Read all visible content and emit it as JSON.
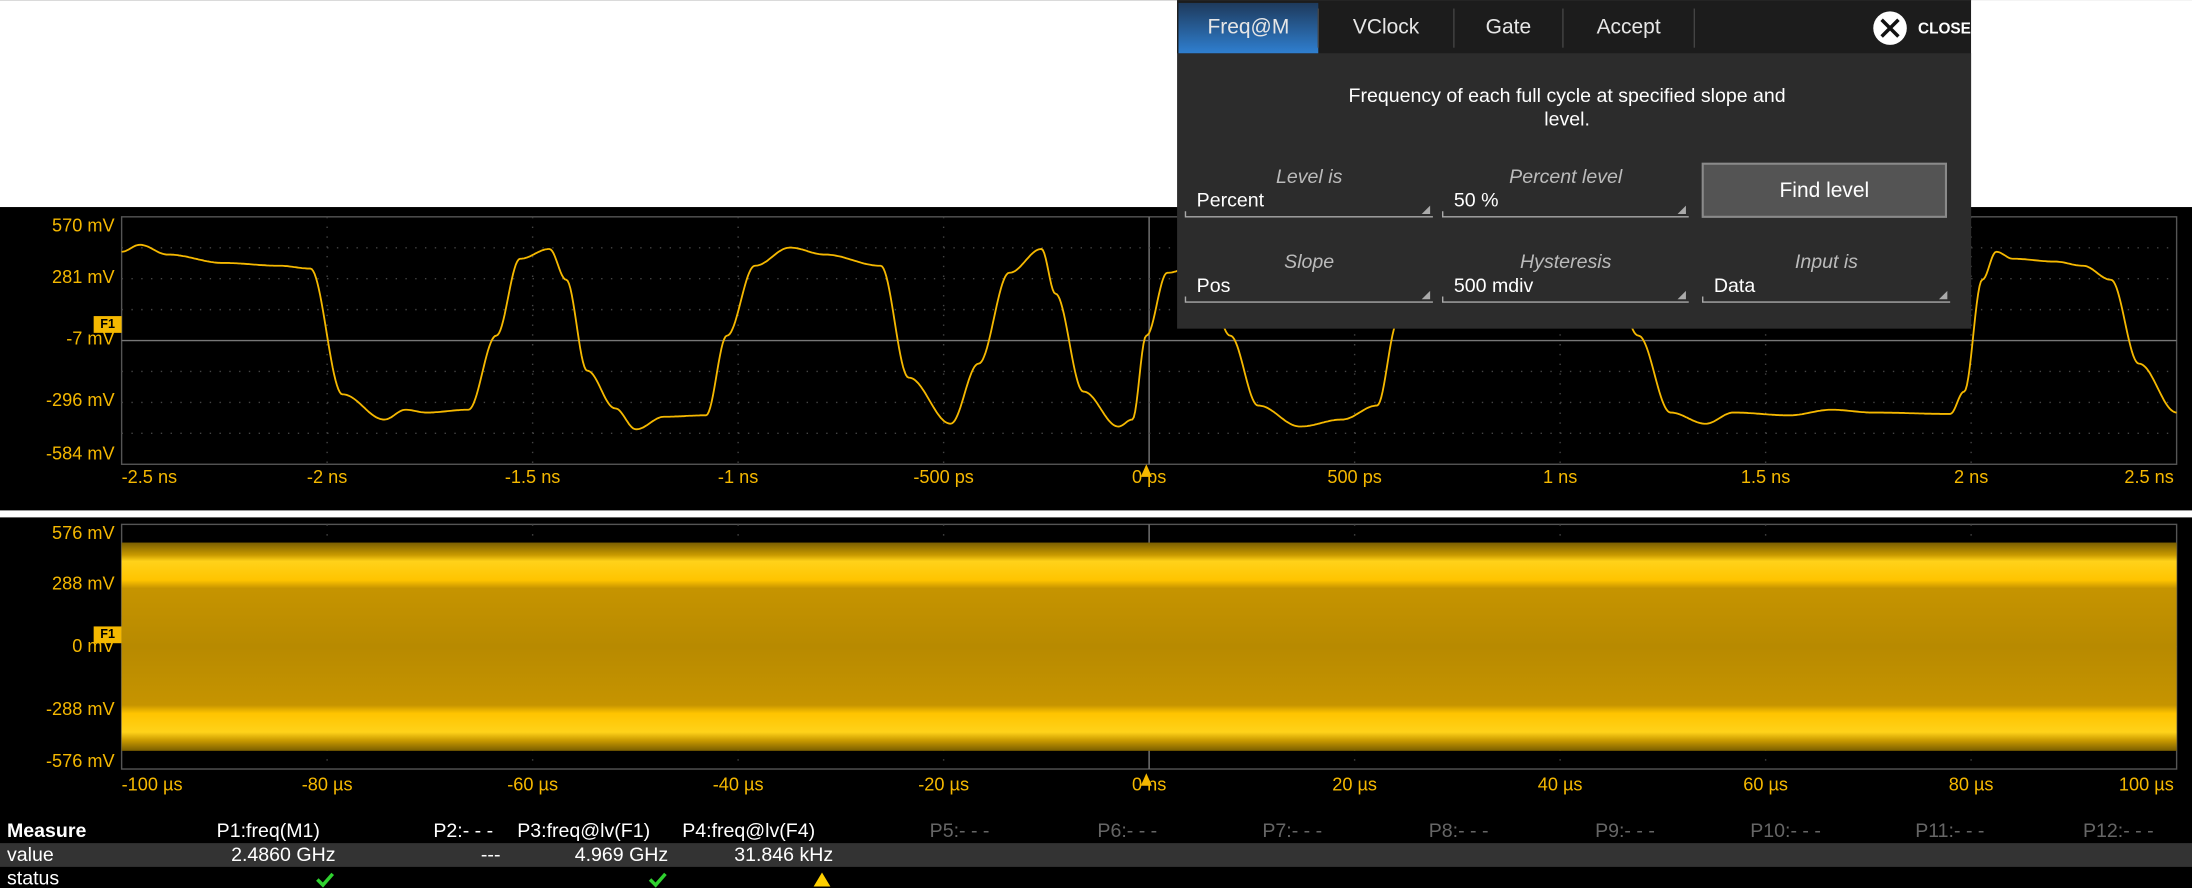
{
  "dialog": {
    "tabs": [
      "Freq@M",
      "VClock",
      "Gate",
      "Accept"
    ],
    "close": "CLOSE",
    "description": [
      "Frequency of each full cycle at specified slope and",
      "level."
    ],
    "fields": [
      {
        "label": "Level is",
        "value": "Percent"
      },
      {
        "label": "Percent level",
        "value": "50 %"
      },
      {
        "label": "Slope",
        "value": "Pos"
      },
      {
        "label": "Hysteresis",
        "value": "500 mdiv"
      },
      {
        "label": "Input is",
        "value": "Data"
      }
    ],
    "button": "Find level"
  },
  "grids": [
    {
      "marker": "F1",
      "y_labels": [
        "570 mV",
        "281 mV",
        "-7 mV",
        "-296 mV",
        "-584 mV"
      ],
      "x_labels": [
        "-2.5 ns",
        "-2 ns",
        "-1.5 ns",
        "-1 ns",
        "-500 ps",
        "0 ps",
        "500 ps",
        "1 ns",
        "1.5 ns",
        "2 ns",
        "2.5 ns"
      ]
    },
    {
      "marker": "F1",
      "y_labels": [
        "576 mV",
        "288 mV",
        "0 mV",
        "-288 mV",
        "-576 mV"
      ],
      "x_labels": [
        "-100 µs",
        "-80 µs",
        "-60 µs",
        "-40 µs",
        "-20 µs",
        "0 ns",
        "20 µs",
        "40 µs",
        "60 µs",
        "80 µs",
        "100 µs"
      ]
    }
  ],
  "measure": {
    "header": [
      "Measure",
      "P1:freq(M1)",
      "P2:- - -",
      "P3:freq@lv(F1)",
      "P4:freq@lv(F4)",
      "P5:- - -",
      "P6:- - -",
      "P7:- - -",
      "P8:- - -",
      "P9:- - -",
      "P10:- - -",
      "P11:- - -",
      "P12:- - -"
    ],
    "rows": [
      [
        "value",
        "2.4860 GHz",
        "---",
        "4.969 GHz",
        "31.846 kHz"
      ],
      [
        "status"
      ]
    ]
  }
}
